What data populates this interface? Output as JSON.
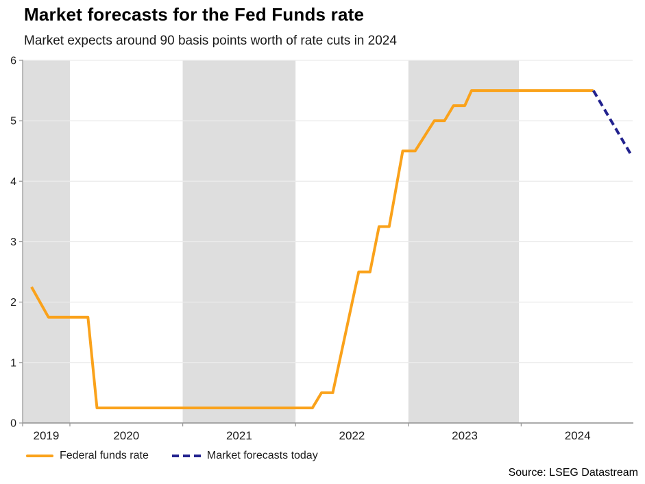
{
  "source": "Source: LSEG Datastream",
  "chart_data": {
    "type": "line",
    "title": "Market forecasts for the Fed Funds rate",
    "subtitle": "Market expects around 90 basis points worth of rate cuts in 2024",
    "xlabel": "",
    "ylabel": "",
    "ylim": [
      0,
      6
    ],
    "grid": true,
    "legend_position": "bottom-left",
    "colors": {
      "band": "#dedede",
      "gridline": "#ebebeb",
      "axis": "#999999",
      "tick_text": "#1a1a1a",
      "ffr_orange": "#FAA21B",
      "forecast_navy": "#22228E"
    },
    "x_axis": {
      "domain": [
        2019.581,
        2024.988
      ],
      "boundaries": [
        2020,
        2021,
        2022,
        2023,
        2024
      ],
      "labels": [
        {
          "text": "2019",
          "year": 2019.79
        },
        {
          "text": "2020",
          "year": 2020.5
        },
        {
          "text": "2021",
          "year": 2021.5
        },
        {
          "text": "2022",
          "year": 2022.5
        },
        {
          "text": "2023",
          "year": 2023.5
        },
        {
          "text": "2024",
          "year": 2024.5
        }
      ]
    },
    "y_axis": {
      "min": 0,
      "max": 6,
      "ticks": [
        0,
        1,
        2,
        3,
        4,
        5,
        6
      ]
    },
    "shaded_year_bands": [
      [
        2019.581,
        2020
      ],
      [
        2021,
        2022
      ],
      [
        2023,
        2023.98
      ]
    ],
    "series": [
      {
        "name": "Federal funds rate",
        "style": "solid",
        "color": "#FAA21B",
        "points": [
          [
            2019.66,
            2.25
          ],
          [
            2019.81,
            1.75
          ],
          [
            2020.16,
            1.75
          ],
          [
            2020.24,
            0.25
          ],
          [
            2022.15,
            0.25
          ],
          [
            2022.23,
            0.5
          ],
          [
            2022.33,
            0.5
          ],
          [
            2022.56,
            2.5
          ],
          [
            2022.66,
            2.5
          ],
          [
            2022.74,
            3.25
          ],
          [
            2022.83,
            3.25
          ],
          [
            2022.95,
            4.5
          ],
          [
            2023.06,
            4.5
          ],
          [
            2023.23,
            5.0
          ],
          [
            2023.32,
            5.0
          ],
          [
            2023.4,
            5.25
          ],
          [
            2023.5,
            5.25
          ],
          [
            2023.56,
            5.5
          ],
          [
            2024.64,
            5.5
          ]
        ]
      },
      {
        "name": "Market forecasts today",
        "style": "dashed",
        "color": "#22228E",
        "points": [
          [
            2024.64,
            5.5
          ],
          [
            2024.97,
            4.45
          ]
        ]
      }
    ]
  }
}
